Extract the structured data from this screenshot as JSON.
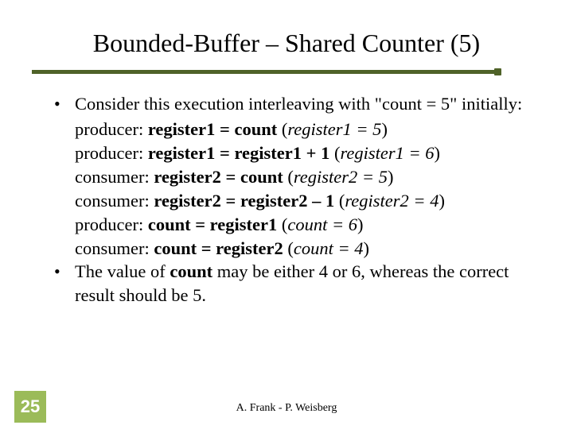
{
  "colors": {
    "background": "#ffffff",
    "text": "#000000",
    "underline": "#4f6228",
    "accent_box": "#9bbb59",
    "accent_text": "#ffffff"
  },
  "typography": {
    "title_fontsize": 32,
    "body_fontsize": 22.5,
    "footer_fontsize": 14,
    "slidenum_fontsize": 22,
    "body_font": "Times New Roman",
    "slidenum_font": "Arial"
  },
  "title": "Bounded-Buffer – Shared Counter (5)",
  "bullets": {
    "b1": {
      "lead": "Consider this execution interleaving with \"count = 5\" initially:",
      "lines": {
        "l1": {
          "role": "producer: ",
          "op": "register1 = count",
          "res_open": " (",
          "res_var": "register1 = 5",
          "res_close": ")"
        },
        "l2": {
          "role": "producer: ",
          "op": "register1 = register1 + 1",
          "res_open": " (",
          "res_var": "register1 = 6",
          "res_close": ")"
        },
        "l3": {
          "role": "consumer: ",
          "op": "register2 = count",
          "res_open": " (",
          "res_var": "register2 = 5",
          "res_close": ")"
        },
        "l4": {
          "role": "consumer: ",
          "op": "register2 = register2 – 1",
          "res_open": " (",
          "res_var": "register2 = 4",
          "res_close": ")"
        },
        "l5": {
          "role": "producer: ",
          "op": "count = register1",
          "res_open": " (",
          "res_var": "count = 6",
          "res_close": ")"
        },
        "l6": {
          "role": "consumer: ",
          "op": "count = register2",
          "res_open": " (",
          "res_var": "count = 4",
          "res_close": ")"
        }
      }
    },
    "b2": {
      "pre": "The value of ",
      "bold": "count",
      "post": " may be either 4 or 6, whereas the correct result should be 5."
    }
  },
  "footer": "A. Frank - P. Weisberg",
  "slide_number": "25"
}
